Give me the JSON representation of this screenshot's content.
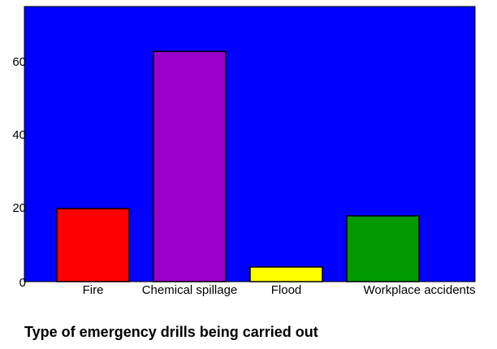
{
  "chart_data": {
    "type": "bar",
    "x_label": "Type of emergency drills being carried out",
    "categories": [
      "Fire",
      "Chemical spillage",
      "Flood",
      "Workplace accidents"
    ],
    "values": [
      20,
      63,
      4,
      18
    ],
    "colors": [
      "#ff0000",
      "#9900cc",
      "#ffff00",
      "#009900"
    ],
    "background": "#0000ff",
    "ylim": [
      0,
      75.3
    ],
    "yticks": [
      0,
      20,
      40,
      60
    ],
    "grid": false
  }
}
